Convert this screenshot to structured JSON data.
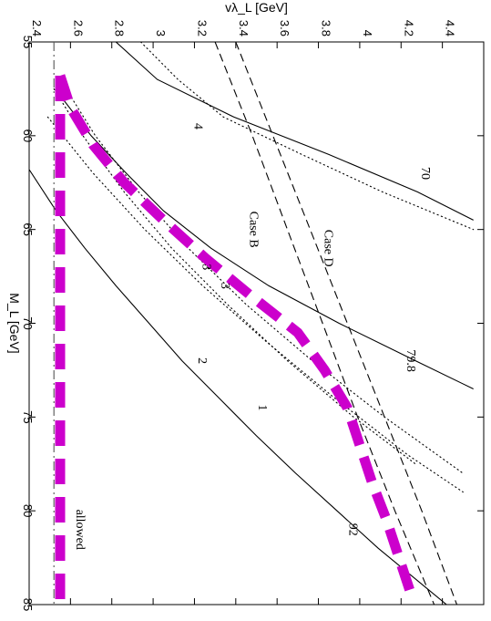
{
  "chart_data": {
    "type": "line",
    "orientation": "rotated-90-clockwise",
    "xlabel": "M_L [GeV]",
    "ylabel": "vλ_L [GeV]",
    "xlim": [
      55,
      85
    ],
    "ylim": [
      2.4,
      4.6
    ],
    "x_ticks": [
      "55",
      "60",
      "65",
      "70",
      "75",
      "80",
      "85"
    ],
    "y_ticks": [
      "2.4",
      "2.6",
      "2.8",
      "3",
      "3.2",
      "3.4",
      "3.6",
      "3.8",
      "4",
      "4.2",
      "4.4"
    ],
    "grid": false,
    "series": [
      {
        "style": "solid",
        "label": "70",
        "x": [
          55,
          57,
          59,
          61,
          63,
          64.5
        ],
        "y": [
          2.82,
          3.02,
          3.39,
          3.85,
          4.28,
          4.55
        ]
      },
      {
        "style": "solid",
        "label": "79.8",
        "x": [
          58,
          60,
          62,
          64,
          66,
          68,
          70,
          72,
          73.5
        ],
        "y": [
          2.56,
          2.7,
          2.87,
          3.05,
          3.28,
          3.56,
          3.9,
          4.27,
          4.55
        ]
      },
      {
        "style": "solid",
        "label": "92",
        "x": [
          61.8,
          64,
          66,
          68,
          70,
          72,
          74,
          76,
          78,
          80,
          82,
          84,
          85
        ],
        "y": [
          2.4,
          2.53,
          2.67,
          2.82,
          2.98,
          3.14,
          3.32,
          3.5,
          3.69,
          3.89,
          4.09,
          4.31,
          4.42
        ]
      },
      {
        "style": "dotted",
        "label": "4",
        "x": [
          55,
          57,
          59,
          61,
          63,
          65
        ],
        "y": [
          2.94,
          3.12,
          3.34,
          3.72,
          4.11,
          4.55
        ]
      },
      {
        "style": "dotted",
        "label": "3",
        "x": [
          57,
          60,
          63,
          66,
          69,
          72,
          75,
          78
        ],
        "y": [
          2.55,
          2.72,
          2.93,
          3.17,
          3.45,
          3.77,
          4.12,
          4.5
        ]
      },
      {
        "style": "dotted",
        "label": "2",
        "x": [
          57.5,
          60,
          63,
          66,
          69,
          72,
          75,
          77.5
        ],
        "y": [
          2.52,
          2.66,
          2.86,
          3.09,
          3.36,
          3.65,
          3.97,
          4.27
        ]
      },
      {
        "style": "dotted",
        "label": "1",
        "x": [
          59,
          62,
          65,
          68,
          71,
          74,
          77,
          79
        ],
        "y": [
          2.49,
          2.71,
          2.96,
          3.24,
          3.55,
          3.88,
          4.23,
          4.5
        ]
      },
      {
        "style": "dashed",
        "label": "Case B",
        "x": [
          55,
          60,
          65,
          70,
          75,
          80,
          85
        ],
        "y": [
          3.3,
          3.48,
          3.65,
          3.82,
          3.99,
          4.17,
          4.36
        ]
      },
      {
        "style": "dashed",
        "label": "Case D",
        "x": [
          55,
          60,
          65,
          70,
          75,
          80,
          85
        ],
        "y": [
          3.4,
          3.58,
          3.76,
          3.94,
          4.12,
          4.3,
          4.47
        ]
      },
      {
        "style": "dashdot",
        "label": "allowed",
        "x": [
          55,
          85
        ],
        "y": [
          2.52,
          2.52
        ]
      },
      {
        "style": "thick-dashed-magenta",
        "x": [
          56.8,
          58.5,
          60.5,
          62.5,
          64.5,
          66.5,
          68.5,
          70.5,
          72.5,
          74.5,
          76.5,
          78.5,
          80.5,
          82.5,
          84.5
        ],
        "y": [
          2.55,
          2.6,
          2.71,
          2.86,
          3.05,
          3.25,
          3.47,
          3.7,
          3.83,
          3.94,
          4.0,
          4.06,
          4.13,
          4.19,
          4.25
        ]
      },
      {
        "style": "thick-dashed-magenta",
        "x": [
          56.8,
          85
        ],
        "y": [
          2.55,
          2.55
        ]
      }
    ],
    "annotations": [
      {
        "text": "70",
        "x": 62.0,
        "y": 4.3
      },
      {
        "text": "79.8",
        "x": 72.0,
        "y": 4.23
      },
      {
        "text": "92",
        "x": 81.0,
        "y": 3.95
      },
      {
        "text": "4",
        "x": 59.5,
        "y": 3.2
      },
      {
        "text": "3",
        "x": 68.0,
        "y": 3.33
      },
      {
        "text": "3",
        "x": 67.0,
        "y": 3.24
      },
      {
        "text": "2",
        "x": 72.0,
        "y": 3.22
      },
      {
        "text": "1",
        "x": 74.5,
        "y": 3.51
      },
      {
        "text": "Case B",
        "x": 65.0,
        "y": 3.47
      },
      {
        "text": "Case D",
        "x": 66.0,
        "y": 3.83
      },
      {
        "text": "allowed",
        "x": 81.0,
        "y": 2.63
      }
    ],
    "colors": {
      "highlight": "#cc00cc",
      "lines": "#000000"
    }
  }
}
